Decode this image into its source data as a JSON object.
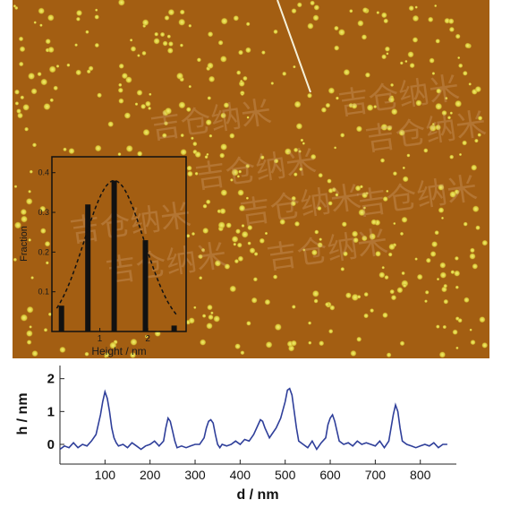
{
  "colors": {
    "afm_base": "#a35e12",
    "afm_light": "#b36c1c",
    "dot": "#e8e04a",
    "profile_line": "#2f3f9a",
    "inset_bar": "#111111"
  },
  "watermark_text": "吉仓纳米",
  "chart_data": [
    {
      "type": "bar",
      "xlabel": "Height / nm",
      "ylabel": "Fraction",
      "xlim": [
        0,
        2.8
      ],
      "ylim": [
        0,
        0.44
      ],
      "x_ticks": [
        "1",
        "2"
      ],
      "x_tick_values": [
        1,
        2
      ],
      "y_ticks": [
        "0.1",
        "0.2",
        "0.3",
        "0.4"
      ],
      "y_tick_values": [
        0.1,
        0.2,
        0.3,
        0.4
      ],
      "x": [
        0.2,
        0.75,
        1.3,
        1.95,
        2.55
      ],
      "values": [
        0.065,
        0.32,
        0.38,
        0.23,
        0.015
      ],
      "fit_curve": "dashed gaussian"
    },
    {
      "type": "line",
      "xlabel": "d / nm",
      "ylabel": "h / nm",
      "xlim": [
        0,
        880
      ],
      "ylim": [
        -0.6,
        2.4
      ],
      "x_ticks": [
        "100",
        "200",
        "300",
        "400",
        "500",
        "600",
        "700",
        "800"
      ],
      "x_tick_values": [
        100,
        200,
        300,
        400,
        500,
        600,
        700,
        800
      ],
      "y_ticks": [
        "0",
        "1",
        "2"
      ],
      "y_tick_values": [
        0,
        1,
        2
      ],
      "series": [
        {
          "x": [
            0,
            10,
            20,
            30,
            40,
            50,
            60,
            70,
            80,
            90,
            95,
            100,
            105,
            110,
            115,
            120,
            125,
            130,
            140,
            150,
            160,
            170,
            180,
            190,
            200,
            210,
            220,
            230,
            235,
            240,
            245,
            250,
            255,
            260,
            270,
            280,
            290,
            300,
            310,
            320,
            325,
            330,
            335,
            340,
            345,
            350,
            355,
            360,
            370,
            380,
            390,
            400,
            410,
            420,
            430,
            440,
            445,
            450,
            455,
            460,
            465,
            470,
            480,
            490,
            500,
            505,
            510,
            515,
            520,
            525,
            530,
            540,
            550,
            560,
            570,
            580,
            590,
            595,
            600,
            605,
            610,
            615,
            620,
            630,
            640,
            650,
            660,
            670,
            680,
            690,
            700,
            710,
            720,
            730,
            735,
            740,
            745,
            750,
            755,
            760,
            770,
            780,
            790,
            800,
            810,
            820,
            830,
            840,
            850,
            860
          ],
          "y": [
            -0.15,
            -0.05,
            -0.1,
            0.05,
            -0.1,
            0.0,
            -0.05,
            0.1,
            0.3,
            0.9,
            1.3,
            1.6,
            1.4,
            1.0,
            0.5,
            0.2,
            0.05,
            -0.05,
            0.0,
            -0.1,
            0.05,
            -0.05,
            -0.15,
            -0.05,
            0.0,
            0.1,
            -0.05,
            0.1,
            0.5,
            0.8,
            0.7,
            0.4,
            0.1,
            -0.1,
            -0.05,
            -0.1,
            -0.05,
            0.0,
            0.0,
            0.2,
            0.5,
            0.7,
            0.75,
            0.65,
            0.3,
            0.0,
            -0.1,
            0.0,
            -0.05,
            0.0,
            0.1,
            0.0,
            0.15,
            0.1,
            0.3,
            0.6,
            0.75,
            0.7,
            0.5,
            0.35,
            0.2,
            0.3,
            0.5,
            0.8,
            1.3,
            1.65,
            1.7,
            1.5,
            1.0,
            0.5,
            0.1,
            0.0,
            -0.1,
            0.1,
            -0.15,
            0.05,
            0.2,
            0.6,
            0.8,
            0.9,
            0.7,
            0.4,
            0.1,
            0.0,
            0.05,
            -0.05,
            0.1,
            0.0,
            0.05,
            0.0,
            -0.05,
            0.1,
            -0.1,
            0.1,
            0.5,
            0.9,
            1.2,
            1.0,
            0.5,
            0.1,
            0.0,
            -0.05,
            -0.1,
            -0.05,
            0.0,
            -0.05,
            0.05,
            -0.1,
            0.0,
            0.0
          ]
        }
      ]
    }
  ]
}
